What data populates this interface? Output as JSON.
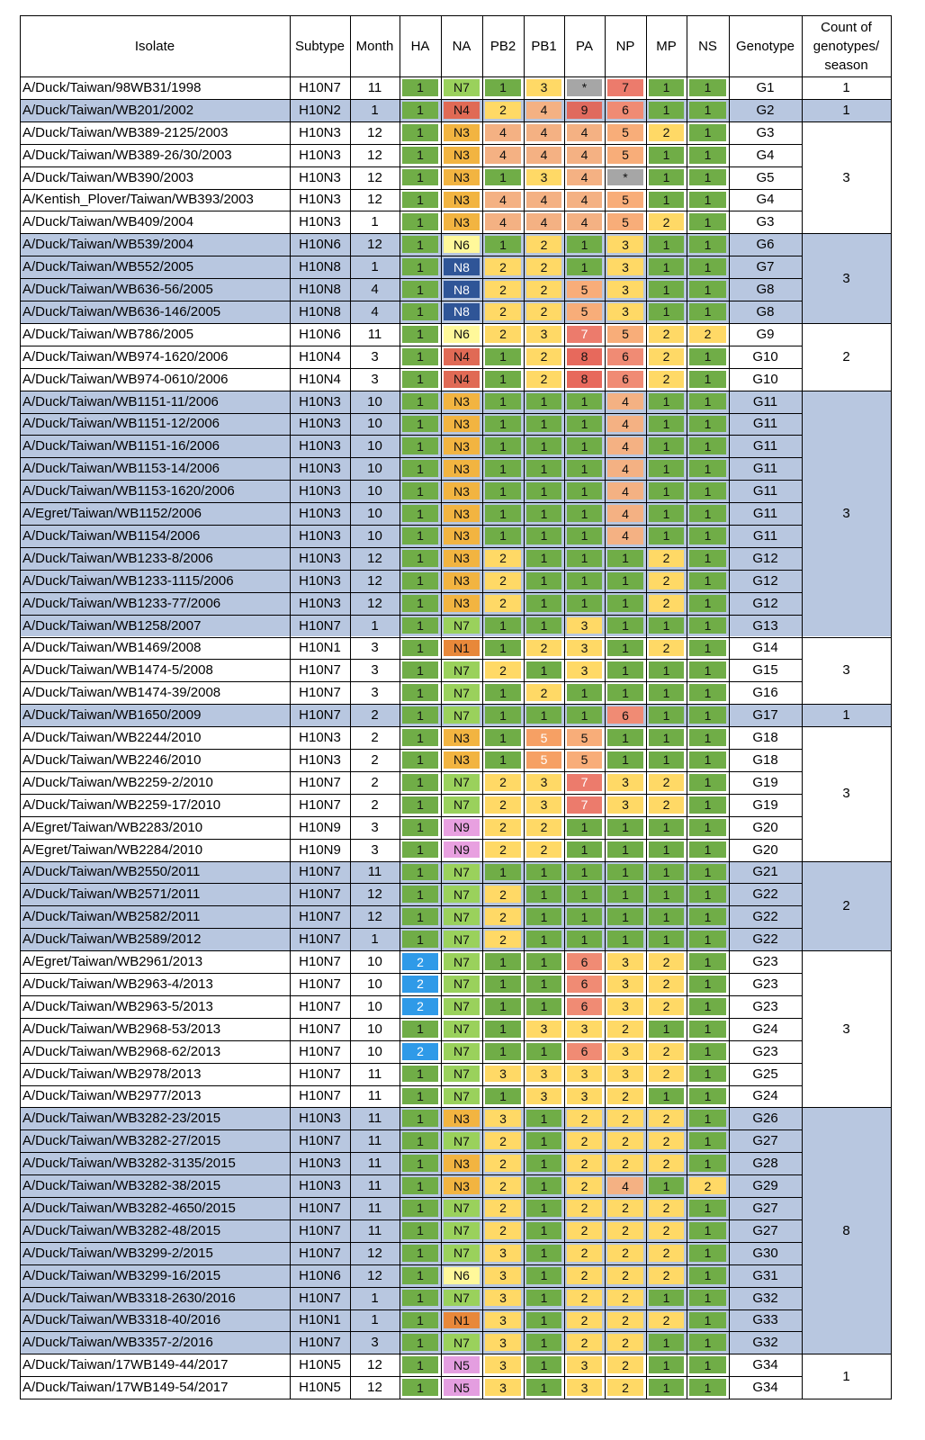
{
  "header": {
    "isolate": "Isolate",
    "subtype": "Subtype",
    "month": "Month",
    "segments": [
      "HA",
      "NA",
      "PB2",
      "PB1",
      "PA",
      "NP",
      "MP",
      "NS"
    ],
    "genotype": "Genotype",
    "count_lines": [
      "Count of",
      "genotypes/",
      "season"
    ]
  },
  "colors": {
    "c1": "#70ad47",
    "c2": "#ffd966",
    "c3": "#ffd966",
    "c4": "#f4b183",
    "c5": "#f8ad79",
    "c6": "#f08b74",
    "c7": "#ec7b6c",
    "c8": "#e7695c",
    "c9": "#e06a5e",
    "c*": "#a6a6a6",
    "N1": "#e8883a",
    "N2": "#e07060",
    "N3": "#f2b441",
    "N4": "#e06a55",
    "N5": "#e49ee0",
    "N6": "#fff89a",
    "N7": "#9ad15c",
    "N8": "#2f5597",
    "N9": "#e8a0e0",
    "HA2": "#2f9ae8",
    "PB1_5": "#f6a064",
    "band": "#b8c7e0"
  },
  "rows": [
    {
      "isolate": "A/Duck/Taiwan/98WB31/1998",
      "subtype": "H10N7",
      "month": "11",
      "seg": [
        "1",
        "N7",
        "1",
        "3",
        "*",
        "7",
        "1",
        "1"
      ],
      "genotype": "G1"
    },
    {
      "isolate": "A/Duck/Taiwan/WB201/2002",
      "subtype": "H10N2",
      "month": "1",
      "seg": [
        "1",
        "N4",
        "2",
        "4",
        "9",
        "6",
        "1",
        "1"
      ],
      "genotype": "G2"
    },
    {
      "isolate": "A/Duck/Taiwan/WB389-2125/2003",
      "subtype": "H10N3",
      "month": "12",
      "seg": [
        "1",
        "N3",
        "4",
        "4",
        "4",
        "5",
        "2",
        "1"
      ],
      "genotype": "G3"
    },
    {
      "isolate": "A/Duck/Taiwan/WB389-26/30/2003",
      "subtype": "H10N3",
      "month": "12",
      "seg": [
        "1",
        "N3",
        "4",
        "4",
        "4",
        "5",
        "1",
        "1"
      ],
      "genotype": "G4"
    },
    {
      "isolate": "A/Duck/Taiwan/WB390/2003",
      "subtype": "H10N3",
      "month": "12",
      "seg": [
        "1",
        "N3",
        "1",
        "3",
        "4",
        "*",
        "1",
        "1"
      ],
      "genotype": "G5"
    },
    {
      "isolate": "A/Kentish_Plover/Taiwan/WB393/2003",
      "subtype": "H10N3",
      "month": "12",
      "seg": [
        "1",
        "N3",
        "4",
        "4",
        "4",
        "5",
        "1",
        "1"
      ],
      "genotype": "G4"
    },
    {
      "isolate": "A/Duck/Taiwan/WB409/2004",
      "subtype": "H10N3",
      "month": "1",
      "seg": [
        "1",
        "N3",
        "4",
        "4",
        "4",
        "5",
        "2",
        "1"
      ],
      "genotype": "G3"
    },
    {
      "isolate": "A/Duck/Taiwan/WB539/2004",
      "subtype": "H10N6",
      "month": "12",
      "seg": [
        "1",
        "N6",
        "1",
        "2",
        "1",
        "3",
        "1",
        "1"
      ],
      "genotype": "G6"
    },
    {
      "isolate": "A/Duck/Taiwan/WB552/2005",
      "subtype": "H10N8",
      "month": "1",
      "seg": [
        "1",
        "N8",
        "2",
        "2",
        "1",
        "3",
        "1",
        "1"
      ],
      "genotype": "G7"
    },
    {
      "isolate": "A/Duck/Taiwan/WB636-56/2005",
      "subtype": "H10N8",
      "month": "4",
      "seg": [
        "1",
        "N8",
        "2",
        "2",
        "5",
        "3",
        "1",
        "1"
      ],
      "genotype": "G8"
    },
    {
      "isolate": "A/Duck/Taiwan/WB636-146/2005",
      "subtype": "H10N8",
      "month": "4",
      "seg": [
        "1",
        "N8",
        "2",
        "2",
        "5",
        "3",
        "1",
        "1"
      ],
      "genotype": "G8"
    },
    {
      "isolate": "A/Duck/Taiwan/WB786/2005",
      "subtype": "H10N6",
      "month": "11",
      "seg": [
        "1",
        "N6",
        "2",
        "3",
        "7",
        "5",
        "2",
        "2"
      ],
      "genotype": "G9"
    },
    {
      "isolate": "A/Duck/Taiwan/WB974-1620/2006",
      "subtype": "H10N4",
      "month": "3",
      "seg": [
        "1",
        "N4",
        "1",
        "2",
        "8",
        "6",
        "2",
        "1"
      ],
      "genotype": "G10"
    },
    {
      "isolate": "A/Duck/Taiwan/WB974-0610/2006",
      "subtype": "H10N4",
      "month": "3",
      "seg": [
        "1",
        "N4",
        "1",
        "2",
        "8",
        "6",
        "2",
        "1"
      ],
      "genotype": "G10"
    },
    {
      "isolate": "A/Duck/Taiwan/WB1151-11/2006",
      "subtype": "H10N3",
      "month": "10",
      "seg": [
        "1",
        "N3",
        "1",
        "1",
        "1",
        "4",
        "1",
        "1"
      ],
      "genotype": "G11"
    },
    {
      "isolate": "A/Duck/Taiwan/WB1151-12/2006",
      "subtype": "H10N3",
      "month": "10",
      "seg": [
        "1",
        "N3",
        "1",
        "1",
        "1",
        "4",
        "1",
        "1"
      ],
      "genotype": "G11"
    },
    {
      "isolate": "A/Duck/Taiwan/WB1151-16/2006",
      "subtype": "H10N3",
      "month": "10",
      "seg": [
        "1",
        "N3",
        "1",
        "1",
        "1",
        "4",
        "1",
        "1"
      ],
      "genotype": "G11"
    },
    {
      "isolate": "A/Duck/Taiwan/WB1153-14/2006",
      "subtype": "H10N3",
      "month": "10",
      "seg": [
        "1",
        "N3",
        "1",
        "1",
        "1",
        "4",
        "1",
        "1"
      ],
      "genotype": "G11"
    },
    {
      "isolate": "A/Duck/Taiwan/WB1153-1620/2006",
      "subtype": "H10N3",
      "month": "10",
      "seg": [
        "1",
        "N3",
        "1",
        "1",
        "1",
        "4",
        "1",
        "1"
      ],
      "genotype": "G11"
    },
    {
      "isolate": "A/Egret/Taiwan/WB1152/2006",
      "subtype": "H10N3",
      "month": "10",
      "seg": [
        "1",
        "N3",
        "1",
        "1",
        "1",
        "4",
        "1",
        "1"
      ],
      "genotype": "G11"
    },
    {
      "isolate": "A/Duck/Taiwan/WB1154/2006",
      "subtype": "H10N3",
      "month": "10",
      "seg": [
        "1",
        "N3",
        "1",
        "1",
        "1",
        "4",
        "1",
        "1"
      ],
      "genotype": "G11"
    },
    {
      "isolate": "A/Duck/Taiwan/WB1233-8/2006",
      "subtype": "H10N3",
      "month": "12",
      "seg": [
        "1",
        "N3",
        "2",
        "1",
        "1",
        "1",
        "2",
        "1"
      ],
      "genotype": "G12"
    },
    {
      "isolate": "A/Duck/Taiwan/WB1233-1115/2006",
      "subtype": "H10N3",
      "month": "12",
      "seg": [
        "1",
        "N3",
        "2",
        "1",
        "1",
        "1",
        "2",
        "1"
      ],
      "genotype": "G12"
    },
    {
      "isolate": "A/Duck/Taiwan/WB1233-77/2006",
      "subtype": "H10N3",
      "month": "12",
      "seg": [
        "1",
        "N3",
        "2",
        "1",
        "1",
        "1",
        "2",
        "1"
      ],
      "genotype": "G12"
    },
    {
      "isolate": "A/Duck/Taiwan/WB1258/2007",
      "subtype": "H10N7",
      "month": "1",
      "seg": [
        "1",
        "N7",
        "1",
        "1",
        "3",
        "1",
        "1",
        "1"
      ],
      "genotype": "G13"
    },
    {
      "isolate": "A/Duck/Taiwan/WB1469/2008",
      "subtype": "H10N1",
      "month": "3",
      "seg": [
        "1",
        "N1",
        "1",
        "2",
        "3",
        "1",
        "2",
        "1"
      ],
      "genotype": "G14"
    },
    {
      "isolate": "A/Duck/Taiwan/WB1474-5/2008",
      "subtype": "H10N7",
      "month": "3",
      "seg": [
        "1",
        "N7",
        "2",
        "1",
        "3",
        "1",
        "1",
        "1"
      ],
      "genotype": "G15"
    },
    {
      "isolate": "A/Duck/Taiwan/WB1474-39/2008",
      "subtype": "H10N7",
      "month": "3",
      "seg": [
        "1",
        "N7",
        "1",
        "2",
        "1",
        "1",
        "1",
        "1"
      ],
      "genotype": "G16"
    },
    {
      "isolate": "A/Duck/Taiwan/WB1650/2009",
      "subtype": "H10N7",
      "month": "2",
      "seg": [
        "1",
        "N7",
        "1",
        "1",
        "1",
        "6",
        "1",
        "1"
      ],
      "genotype": "G17"
    },
    {
      "isolate": "A/Duck/Taiwan/WB2244/2010",
      "subtype": "H10N3",
      "month": "2",
      "seg": [
        "1",
        "N3",
        "1",
        "5",
        "5",
        "1",
        "1",
        "1"
      ],
      "genotype": "G18"
    },
    {
      "isolate": "A/Duck/Taiwan/WB2246/2010",
      "subtype": "H10N3",
      "month": "2",
      "seg": [
        "1",
        "N3",
        "1",
        "5",
        "5",
        "1",
        "1",
        "1"
      ],
      "genotype": "G18"
    },
    {
      "isolate": "A/Duck/Taiwan/WB2259-2/2010",
      "subtype": "H10N7",
      "month": "2",
      "seg": [
        "1",
        "N7",
        "2",
        "3",
        "7",
        "3",
        "2",
        "1"
      ],
      "genotype": "G19"
    },
    {
      "isolate": "A/Duck/Taiwan/WB2259-17/2010",
      "subtype": "H10N7",
      "month": "2",
      "seg": [
        "1",
        "N7",
        "2",
        "3",
        "7",
        "3",
        "2",
        "1"
      ],
      "genotype": "G19"
    },
    {
      "isolate": "A/Egret/Taiwan/WB2283/2010",
      "subtype": "H10N9",
      "month": "3",
      "seg": [
        "1",
        "N9",
        "2",
        "2",
        "1",
        "1",
        "1",
        "1"
      ],
      "genotype": "G20"
    },
    {
      "isolate": "A/Egret/Taiwan/WB2284/2010",
      "subtype": "H10N9",
      "month": "3",
      "seg": [
        "1",
        "N9",
        "2",
        "2",
        "1",
        "1",
        "1",
        "1"
      ],
      "genotype": "G20"
    },
    {
      "isolate": "A/Duck/Taiwan/WB2550/2011",
      "subtype": "H10N7",
      "month": "11",
      "seg": [
        "1",
        "N7",
        "1",
        "1",
        "1",
        "1",
        "1",
        "1"
      ],
      "genotype": "G21"
    },
    {
      "isolate": "A/Duck/Taiwan/WB2571/2011",
      "subtype": "H10N7",
      "month": "12",
      "seg": [
        "1",
        "N7",
        "2",
        "1",
        "1",
        "1",
        "1",
        "1"
      ],
      "genotype": "G22"
    },
    {
      "isolate": "A/Duck/Taiwan/WB2582/2011",
      "subtype": "H10N7",
      "month": "12",
      "seg": [
        "1",
        "N7",
        "2",
        "1",
        "1",
        "1",
        "1",
        "1"
      ],
      "genotype": "G22"
    },
    {
      "isolate": "A/Duck/Taiwan/WB2589/2012",
      "subtype": "H10N7",
      "month": "1",
      "seg": [
        "1",
        "N7",
        "2",
        "1",
        "1",
        "1",
        "1",
        "1"
      ],
      "genotype": "G22"
    },
    {
      "isolate": "A/Egret/Taiwan/WB2961/2013",
      "subtype": "H10N7",
      "month": "10",
      "seg": [
        "2",
        "N7",
        "1",
        "1",
        "6",
        "3",
        "2",
        "1"
      ],
      "genotype": "G23"
    },
    {
      "isolate": "A/Duck/Taiwan/WB2963-4/2013",
      "subtype": "H10N7",
      "month": "10",
      "seg": [
        "2",
        "N7",
        "1",
        "1",
        "6",
        "3",
        "2",
        "1"
      ],
      "genotype": "G23"
    },
    {
      "isolate": "A/Duck/Taiwan/WB2963-5/2013",
      "subtype": "H10N7",
      "month": "10",
      "seg": [
        "2",
        "N7",
        "1",
        "1",
        "6",
        "3",
        "2",
        "1"
      ],
      "genotype": "G23"
    },
    {
      "isolate": "A/Duck/Taiwan/WB2968-53/2013",
      "subtype": "H10N7",
      "month": "10",
      "seg": [
        "1",
        "N7",
        "1",
        "3",
        "3",
        "2",
        "1",
        "1"
      ],
      "genotype": "G24"
    },
    {
      "isolate": "A/Duck/Taiwan/WB2968-62/2013",
      "subtype": "H10N7",
      "month": "10",
      "seg": [
        "2",
        "N7",
        "1",
        "1",
        "6",
        "3",
        "2",
        "1"
      ],
      "genotype": "G23"
    },
    {
      "isolate": "A/Duck/Taiwan/WB2978/2013",
      "subtype": "H10N7",
      "month": "11",
      "seg": [
        "1",
        "N7",
        "3",
        "3",
        "3",
        "3",
        "2",
        "1"
      ],
      "genotype": "G25"
    },
    {
      "isolate": "A/Duck/Taiwan/WB2977/2013",
      "subtype": "H10N7",
      "month": "11",
      "seg": [
        "1",
        "N7",
        "1",
        "3",
        "3",
        "2",
        "1",
        "1"
      ],
      "genotype": "G24"
    },
    {
      "isolate": "A/Duck/Taiwan/WB3282-23/2015",
      "subtype": "H10N3",
      "month": "11",
      "seg": [
        "1",
        "N3",
        "3",
        "1",
        "2",
        "2",
        "2",
        "1"
      ],
      "genotype": "G26"
    },
    {
      "isolate": "A/Duck/Taiwan/WB3282-27/2015",
      "subtype": "H10N7",
      "month": "11",
      "seg": [
        "1",
        "N7",
        "2",
        "1",
        "2",
        "2",
        "2",
        "1"
      ],
      "genotype": "G27"
    },
    {
      "isolate": "A/Duck/Taiwan/WB3282-3135/2015",
      "subtype": "H10N3",
      "month": "11",
      "seg": [
        "1",
        "N3",
        "2",
        "1",
        "2",
        "2",
        "2",
        "1"
      ],
      "genotype": "G28"
    },
    {
      "isolate": "A/Duck/Taiwan/WB3282-38/2015",
      "subtype": "H10N3",
      "month": "11",
      "seg": [
        "1",
        "N3",
        "2",
        "1",
        "2",
        "4",
        "1",
        "2"
      ],
      "genotype": "G29"
    },
    {
      "isolate": "A/Duck/Taiwan/WB3282-4650/2015",
      "subtype": "H10N7",
      "month": "11",
      "seg": [
        "1",
        "N7",
        "2",
        "1",
        "2",
        "2",
        "2",
        "1"
      ],
      "genotype": "G27"
    },
    {
      "isolate": "A/Duck/Taiwan/WB3282-48/2015",
      "subtype": "H10N7",
      "month": "11",
      "seg": [
        "1",
        "N7",
        "2",
        "1",
        "2",
        "2",
        "2",
        "1"
      ],
      "genotype": "G27"
    },
    {
      "isolate": "A/Duck/Taiwan/WB3299-2/2015",
      "subtype": "H10N7",
      "month": "12",
      "seg": [
        "1",
        "N7",
        "3",
        "1",
        "2",
        "2",
        "2",
        "1"
      ],
      "genotype": "G30"
    },
    {
      "isolate": "A/Duck/Taiwan/WB3299-16/2015",
      "subtype": "H10N6",
      "month": "12",
      "seg": [
        "1",
        "N6",
        "3",
        "1",
        "2",
        "2",
        "2",
        "1"
      ],
      "genotype": "G31"
    },
    {
      "isolate": "A/Duck/Taiwan/WB3318-2630/2016",
      "subtype": "H10N7",
      "month": "1",
      "seg": [
        "1",
        "N7",
        "3",
        "1",
        "2",
        "2",
        "1",
        "1"
      ],
      "genotype": "G32"
    },
    {
      "isolate": "A/Duck/Taiwan/WB3318-40/2016",
      "subtype": "H10N1",
      "month": "1",
      "seg": [
        "1",
        "N1",
        "3",
        "1",
        "2",
        "2",
        "2",
        "1"
      ],
      "genotype": "G33"
    },
    {
      "isolate": "A/Duck/Taiwan/WB3357-2/2016",
      "subtype": "H10N7",
      "month": "3",
      "seg": [
        "1",
        "N7",
        "3",
        "1",
        "2",
        "2",
        "1",
        "1"
      ],
      "genotype": "G32"
    },
    {
      "isolate": "A/Duck/Taiwan/17WB149-44/2017",
      "subtype": "H10N5",
      "month": "12",
      "seg": [
        "1",
        "N5",
        "3",
        "1",
        "3",
        "2",
        "1",
        "1"
      ],
      "genotype": "G34"
    },
    {
      "isolate": "A/Duck/Taiwan/17WB149-54/2017",
      "subtype": "H10N5",
      "month": "12",
      "seg": [
        "1",
        "N5",
        "3",
        "1",
        "3",
        "2",
        "1",
        "1"
      ],
      "genotype": "G34"
    }
  ],
  "seasons": [
    {
      "count": "1",
      "start": 0,
      "end": 0,
      "shaded": false
    },
    {
      "count": "1",
      "start": 1,
      "end": 1,
      "shaded": true
    },
    {
      "count": "3",
      "start": 2,
      "end": 6,
      "shaded": false
    },
    {
      "count": "3",
      "start": 7,
      "end": 10,
      "shaded": true
    },
    {
      "count": "2",
      "start": 11,
      "end": 13,
      "shaded": false
    },
    {
      "count": "3",
      "start": 14,
      "end": 24,
      "shaded": true
    },
    {
      "count": "3",
      "start": 25,
      "end": 27,
      "shaded": false
    },
    {
      "count": "1",
      "start": 28,
      "end": 28,
      "shaded": true
    },
    {
      "count": "3",
      "start": 29,
      "end": 34,
      "shaded": false
    },
    {
      "count": "2",
      "start": 35,
      "end": 38,
      "shaded": true
    },
    {
      "count": "3",
      "start": 39,
      "end": 45,
      "shaded": false
    },
    {
      "count": "8",
      "start": 46,
      "end": 56,
      "shaded": true
    },
    {
      "count": "1",
      "start": 57,
      "end": 58,
      "shaded": false
    }
  ]
}
